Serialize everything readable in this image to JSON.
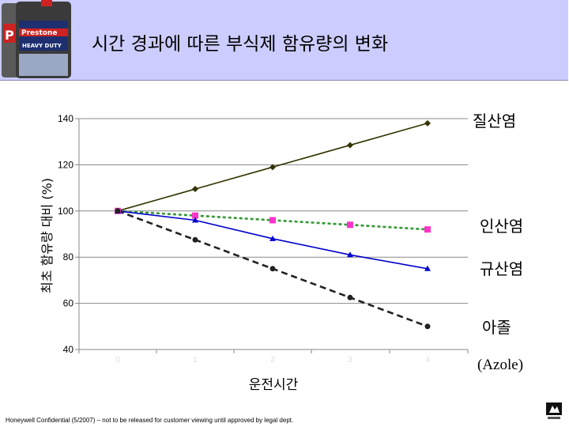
{
  "header": {
    "title": "시간 경과에 따른 부식제 함유량의 변화",
    "product_brand": "Prestone",
    "product_line": "HEAVY DUTY",
    "product_brand_side": "P"
  },
  "chart_data": {
    "type": "line",
    "title": "",
    "xlabel": "운전시간",
    "ylabel": "최초 함유량 대비 (%)",
    "ylim": [
      40,
      140
    ],
    "yticks": [
      "40",
      "60",
      "80",
      "100",
      "120",
      "140"
    ],
    "xticks": [
      "0",
      "1",
      "2",
      "3",
      "4"
    ],
    "x": [
      0,
      1,
      2,
      3,
      4
    ],
    "grid": true,
    "series": [
      {
        "name": "질산염",
        "values": [
          100,
          109.5,
          119,
          128.5,
          138
        ],
        "color": "#333300",
        "marker": "diamond",
        "dash": "solid"
      },
      {
        "name": "인산염",
        "values": [
          100,
          98,
          96,
          94,
          92
        ],
        "color": "#ff33cc",
        "line_color": "#339933",
        "marker": "square",
        "dash": "dotted"
      },
      {
        "name": "규산염",
        "values": [
          100,
          96,
          88,
          81,
          75
        ],
        "color": "#0000cc",
        "marker": "triangle",
        "dash": "solid"
      },
      {
        "name": "아졸",
        "values": [
          100,
          87.5,
          75,
          62.5,
          50
        ],
        "color": "#222222",
        "marker": "circle",
        "dash": "dashed"
      }
    ],
    "legend_extra": "(Azole)"
  },
  "footer": {
    "confidential": "Honeywell Confidential (5/2007) – not to be released for customer viewing until approved by legal dept."
  }
}
